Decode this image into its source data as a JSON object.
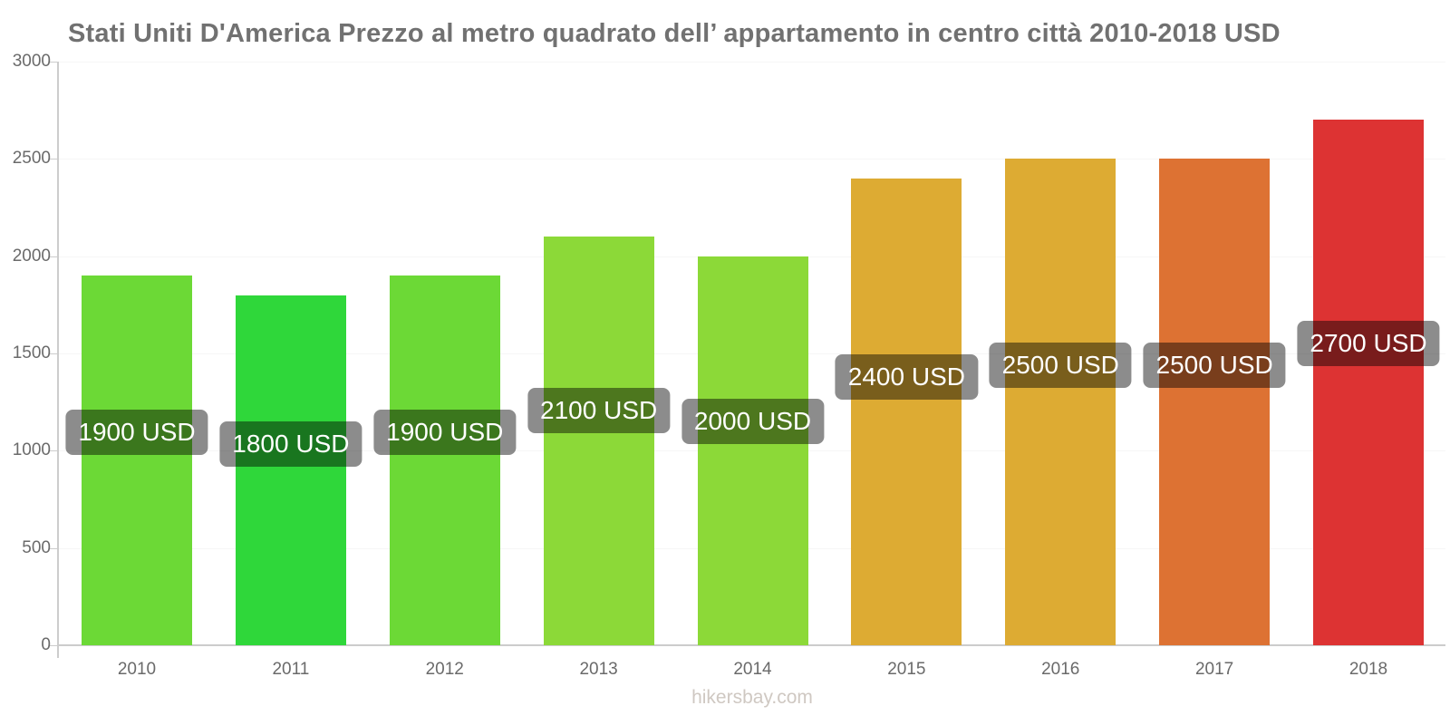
{
  "page": {
    "watermark": "hikersbay.com"
  },
  "colors": {
    "bg": "#ffffff",
    "title": "#717171",
    "axistext": "#6a6a6a",
    "axisline": "#cccccc",
    "grid": "#f6f6f6",
    "labelbg": "rgba(0,0,0,0.45)",
    "labeltext": "#ffffff",
    "watermark": "#cfc8c2"
  },
  "chart_data": {
    "type": "bar",
    "title": "Stati Uniti D'America Prezzo al metro quadrato dell’ appartamento in centro città 2010-2018 USD",
    "categories": [
      "2010",
      "2011",
      "2012",
      "2013",
      "2014",
      "2015",
      "2016",
      "2017",
      "2018"
    ],
    "values": [
      1900,
      1800,
      1900,
      2100,
      2000,
      2400,
      2500,
      2500,
      2700
    ],
    "value_labels": [
      "1900 USD",
      "1800 USD",
      "1900 USD",
      "2100 USD",
      "2000 USD",
      "2400 USD",
      "2500 USD",
      "2500 USD",
      "2700 USD"
    ],
    "bar_colors": [
      "#6cd936",
      "#2fd73a",
      "#6cd936",
      "#8cd938",
      "#8cd938",
      "#ddab33",
      "#ddab33",
      "#dd7233",
      "#dd3333"
    ],
    "unit": "USD",
    "xlabel": "",
    "ylabel": "",
    "ylim": [
      0,
      3000
    ],
    "ytick_step": 500,
    "grid": "horizontal-faint",
    "legend": "none"
  }
}
